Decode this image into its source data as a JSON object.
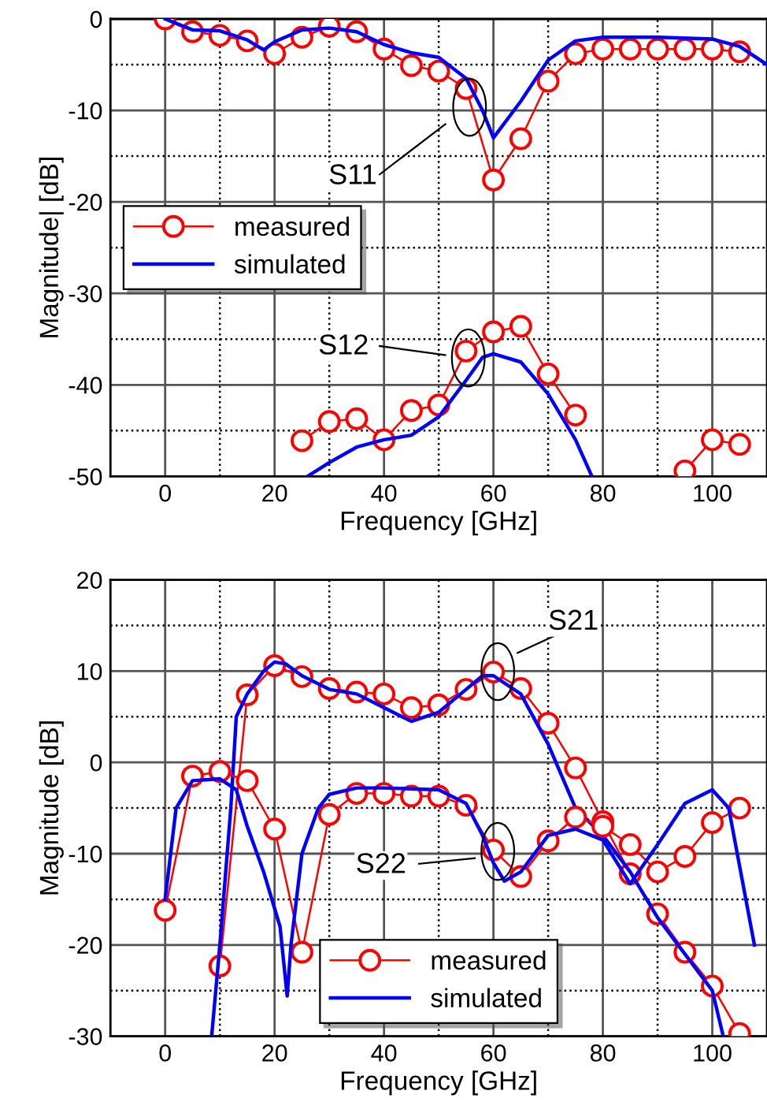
{
  "chart_data": [
    {
      "type": "line",
      "xlabel": "Frequency [GHz]",
      "ylabel": "Magnitude| [dB]",
      "xlim": [
        -10,
        110
      ],
      "xticks": [
        0,
        {
          "value": 10,
          "label": null
        },
        20,
        {
          "value": 30,
          "label": null
        },
        40,
        {
          "value": 50,
          "label": null
        },
        60,
        {
          "value": 70,
          "label": null
        },
        80,
        {
          "value": 90,
          "label": null
        },
        100
      ],
      "ylim": [
        -50,
        0
      ],
      "yticks": [
        -50,
        {
          "value": -45,
          "label": null
        },
        -40,
        {
          "value": -35,
          "label": null
        },
        -30,
        {
          "value": -25,
          "label": null
        },
        -20,
        {
          "value": -15,
          "label": null
        },
        -10,
        {
          "value": -5,
          "label": null
        },
        0
      ],
      "grid": true,
      "legend": "center left",
      "annotations": [
        "S11",
        "S12"
      ],
      "series": [
        {
          "name": "measured",
          "color": "#ff0000",
          "marker": "circle",
          "x": [
            0,
            5,
            10,
            15,
            20,
            25,
            30,
            35,
            40,
            45,
            50,
            55,
            60,
            65,
            70,
            75,
            80,
            85,
            90,
            95,
            100,
            105
          ],
          "values": [
            0,
            -1.4,
            -1.8,
            -2.4,
            -3.8,
            -2.0,
            -0.8,
            -1.4,
            -3.3,
            -5.1,
            -5.7,
            -7.6,
            -17.6,
            -13.1,
            -6.8,
            -3.8,
            -3.3,
            -3.3,
            -3.3,
            -3.3,
            -3.3,
            -3.6
          ]
        },
        {
          "name": "simulated",
          "color": "#0000ff",
          "marker": "none",
          "x": [
            0,
            5,
            10,
            15,
            18,
            20,
            25,
            30,
            35,
            40,
            45,
            50,
            55,
            58,
            60,
            65,
            70,
            75,
            80,
            90,
            100,
            105,
            110
          ],
          "values": [
            0,
            -1.2,
            -1.3,
            -2.3,
            -3.4,
            -2.5,
            -1.2,
            -1.0,
            -1.4,
            -2.8,
            -3.7,
            -4.2,
            -6.5,
            -10,
            -13,
            -9,
            -4.5,
            -2.4,
            -2.0,
            -2.0,
            -2.2,
            -3.0,
            -5.0
          ]
        },
        {
          "color": "#ff0000",
          "marker": "circle",
          "x": [
            25,
            30,
            35,
            40,
            45,
            50,
            55,
            60,
            65,
            70,
            75,
            80,
            85,
            90,
            95,
            100,
            105
          ],
          "values": [
            -46.1,
            -44.0,
            -43.7,
            -46.0,
            -42.8,
            -42.2,
            -36.3,
            -34.2,
            -33.6,
            -38.8,
            -43.3,
            null,
            null,
            null,
            -49.4,
            -46.0,
            -46.5
          ]
        },
        {
          "color": "#0000ff",
          "marker": "none",
          "x": [
            26,
            30,
            35,
            40,
            45,
            50,
            55,
            58,
            60,
            65,
            70,
            75,
            78
          ],
          "values": [
            -50,
            -48.5,
            -46.8,
            -46.0,
            -45.5,
            -43.5,
            -39.5,
            -37,
            -36.6,
            -37.5,
            -41,
            -46,
            -50
          ]
        }
      ]
    },
    {
      "type": "line",
      "xlabel": "Frequency [GHz]",
      "ylabel": "Magnitude [dB]",
      "xlim": [
        -10,
        110
      ],
      "xticks": [
        0,
        {
          "value": 10,
          "label": null
        },
        20,
        {
          "value": 30,
          "label": null
        },
        40,
        {
          "value": 50,
          "label": null
        },
        60,
        {
          "value": 70,
          "label": null
        },
        80,
        {
          "value": 90,
          "label": null
        },
        100
      ],
      "ylim": [
        -30,
        20
      ],
      "yticks": [
        -30,
        {
          "value": -25,
          "label": null
        },
        -20,
        {
          "value": -15,
          "label": null
        },
        -10,
        {
          "value": -5,
          "label": null
        },
        0,
        {
          "value": 5,
          "label": null
        },
        10,
        {
          "value": 15,
          "label": null
        },
        20
      ],
      "grid": true,
      "legend": "lower center",
      "annotations": [
        "S21",
        "S22"
      ],
      "series": [
        {
          "name": "measured",
          "color": "#ff0000",
          "marker": "circle",
          "x": [
            10,
            15,
            20,
            25,
            30,
            35,
            40,
            45,
            50,
            55,
            60,
            65,
            70,
            75,
            80,
            85,
            90,
            95,
            100,
            105
          ],
          "values": [
            -22.3,
            7.4,
            10.6,
            9.4,
            8.1,
            7.7,
            7.5,
            6.0,
            6.3,
            8.0,
            9.9,
            8.1,
            4.3,
            -0.6,
            -6.5,
            -12.2,
            -16.6,
            -20.8,
            -24.5,
            -29.7
          ]
        },
        {
          "name": "simulated",
          "color": "#0000ff",
          "marker": "none",
          "x": [
            8.5,
            10,
            12,
            13,
            15,
            18,
            20,
            22,
            25,
            30,
            35,
            40,
            45,
            50,
            55,
            58,
            60,
            65,
            70,
            75,
            80,
            85,
            90,
            95,
            100,
            102
          ],
          "values": [
            -30,
            -20,
            -5,
            5,
            7.5,
            10,
            11,
            10.8,
            9.5,
            8,
            7.5,
            6,
            4.5,
            5.5,
            8,
            9.5,
            9.5,
            7.5,
            2,
            -5,
            -8,
            -12,
            -17,
            -21,
            -25,
            -30
          ]
        },
        {
          "color": "#ff0000",
          "marker": "circle",
          "x": [
            0,
            5,
            10,
            15,
            20,
            25,
            30,
            35,
            40,
            45,
            50,
            55,
            60,
            65,
            70,
            75,
            80,
            85,
            90,
            95,
            100,
            105
          ],
          "values": [
            -16.2,
            -1.5,
            -1.0,
            -2.0,
            -7.3,
            -20.8,
            -5.7,
            -3.4,
            -3.4,
            -3.7,
            -3.7,
            -4.7,
            -9.6,
            -12.5,
            -8.6,
            -6.0,
            -7.0,
            -9.0,
            -12.0,
            -10.3,
            -6.6,
            -5.0
          ]
        },
        {
          "color": "#0000ff",
          "marker": "none",
          "x": [
            0,
            2,
            5,
            10,
            13,
            15,
            18,
            21,
            22.3,
            23,
            25,
            28,
            30,
            35,
            40,
            45,
            50,
            55,
            58,
            60,
            62,
            65,
            70,
            75,
            80,
            85,
            90,
            95,
            100,
            103,
            107.7
          ],
          "values": [
            -15,
            -5,
            -2,
            -1.8,
            -3,
            -7,
            -12,
            -18,
            -25.6,
            -20,
            -10,
            -5,
            -3.5,
            -2.8,
            -2.8,
            -2.9,
            -3,
            -4.5,
            -8,
            -11,
            -13,
            -12,
            -8,
            -7.3,
            -8.5,
            -13.3,
            -9,
            -4.5,
            -3,
            -5,
            -20
          ]
        }
      ]
    }
  ]
}
